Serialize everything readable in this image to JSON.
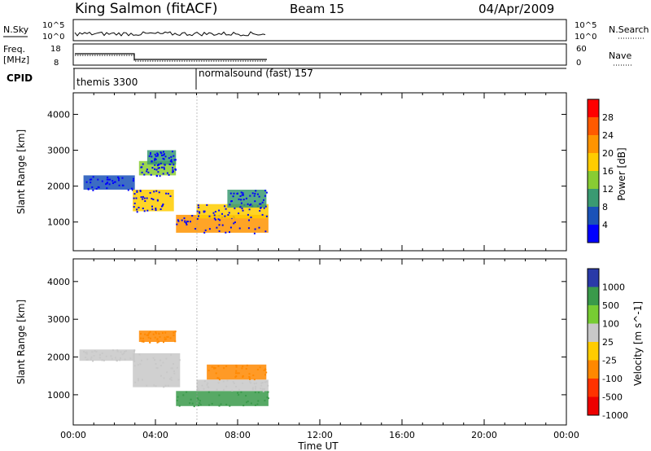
{
  "header": {
    "station": "King Salmon (fitACF)",
    "beam": "Beam 15",
    "date": "04/Apr/2009"
  },
  "strips": {
    "nsky_label": "N.Sky",
    "nsearch_label": "N.Search",
    "nsky_ticks": [
      "10^5",
      "10^0"
    ],
    "freq_label_top": "Freq.",
    "freq_label_bottom": "[MHz]",
    "freq_ticks": [
      "18",
      "8"
    ],
    "nave_label": "Nave",
    "nave_ticks": [
      "60",
      "0"
    ],
    "cpid_label": "CPID",
    "cpid_segments": [
      {
        "name": "themis 3300",
        "start": "00:00",
        "end": "06:00"
      },
      {
        "name": "normalsound (fast) 157",
        "start": "06:00",
        "end": "09:30"
      }
    ]
  },
  "chart_data": [
    {
      "type": "heatmap",
      "title": "",
      "xlabel": "Time UT",
      "ylabel": "Slant Range [km]",
      "colorbar_label": "Power [dB]",
      "colorbar_ticks": [
        "28",
        "24",
        "20",
        "16",
        "12",
        "8",
        "4"
      ],
      "colorbar_colors": [
        "#ff0000",
        "#ff5a00",
        "#ff9400",
        "#ffcc00",
        "#88cc33",
        "#3a9a72",
        "#1a52b8",
        "#0000ff"
      ],
      "x_ticks": [
        "00:00",
        "04:00",
        "08:00",
        "12:00",
        "16:00",
        "20:00",
        "00:00"
      ],
      "y_ticks": [
        1000,
        2000,
        3000,
        4000
      ],
      "ylim": [
        200,
        4600
      ],
      "xlim_hours": [
        0,
        24
      ],
      "regions": [
        {
          "t0": 0.5,
          "t1": 3.0,
          "r0": 1900,
          "r1": 2300,
          "level": 1
        },
        {
          "t0": 2.9,
          "t1": 4.9,
          "r0": 1300,
          "r1": 1900,
          "level": 4
        },
        {
          "t0": 3.2,
          "t1": 5.0,
          "r0": 2300,
          "r1": 2700,
          "level": 3
        },
        {
          "t0": 3.6,
          "t1": 5.0,
          "r0": 2600,
          "r1": 3000,
          "level": 2
        },
        {
          "t0": 5.0,
          "t1": 9.5,
          "r0": 700,
          "r1": 1200,
          "level": 5
        },
        {
          "t0": 6.0,
          "t1": 9.5,
          "r0": 1100,
          "r1": 1500,
          "level": 4
        },
        {
          "t0": 7.5,
          "t1": 9.4,
          "r0": 1400,
          "r1": 1900,
          "level": 2
        }
      ]
    },
    {
      "type": "heatmap",
      "title": "",
      "xlabel": "Time UT",
      "ylabel": "Slant Range [km]",
      "colorbar_label": "Velocity [m s^-1]",
      "colorbar_ticks": [
        "1000",
        "500",
        "100",
        "25",
        "-25",
        "-100",
        "-500",
        "-1000"
      ],
      "colorbar_colors": [
        "#2a3aa8",
        "#3a9a4a",
        "#77cc33",
        "#c8c8c8",
        "#ffcc00",
        "#ff8800",
        "#ff3300",
        "#ee0000"
      ],
      "x_ticks": [
        "00:00",
        "04:00",
        "08:00",
        "12:00",
        "16:00",
        "20:00",
        "00:00"
      ],
      "y_ticks": [
        1000,
        2000,
        3000,
        4000
      ],
      "ylim": [
        200,
        4600
      ],
      "xlim_hours": [
        0,
        24
      ],
      "regions": [
        {
          "t0": 0.3,
          "t1": 3.0,
          "r0": 1900,
          "r1": 2200,
          "velocity": 0
        },
        {
          "t0": 2.9,
          "t1": 5.2,
          "r0": 1200,
          "r1": 2100,
          "velocity": 0
        },
        {
          "t0": 3.2,
          "t1": 5.0,
          "r0": 2400,
          "r1": 2700,
          "velocity": -150
        },
        {
          "t0": 5.0,
          "t1": 9.5,
          "r0": 700,
          "r1": 1100,
          "velocity": 120
        },
        {
          "t0": 6.0,
          "t1": 9.5,
          "r0": 1100,
          "r1": 1400,
          "velocity": 0
        },
        {
          "t0": 6.5,
          "t1": 9.4,
          "r0": 1400,
          "r1": 1800,
          "velocity": -150
        }
      ]
    }
  ]
}
